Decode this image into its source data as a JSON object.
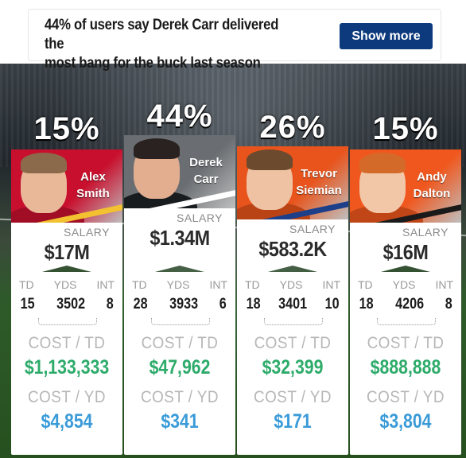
{
  "header": {
    "headline_line1": "44% of users say Derek Carr delivered the",
    "headline_line2": "most bang for the buck last season",
    "show_more_label": "Show more"
  },
  "labels": {
    "salary": "SALARY",
    "td": "TD",
    "yds": "YDS",
    "int": "INT",
    "cost_td": "COST / TD",
    "cost_yd": "COST / YD"
  },
  "colors": {
    "button": "#0d3a7d",
    "cost_td": "#2dab6a",
    "cost_yd": "#3a9bd8"
  },
  "players": [
    {
      "pct": "15%",
      "first": "Alex",
      "last": "Smith",
      "team_colors": [
        "#c8102e",
        "#f2c230"
      ],
      "salary": "$17M",
      "td": "15",
      "yds": "3502",
      "int": "8",
      "cost_td": "$1,133,333",
      "cost_yd": "$4,854"
    },
    {
      "pct": "44%",
      "first": "Derek",
      "last": "Carr",
      "team_colors": [
        "#6a6e72",
        "#ffffff"
      ],
      "salary": "$1.34M",
      "td": "28",
      "yds": "3933",
      "int": "6",
      "cost_td": "$47,962",
      "cost_yd": "$341"
    },
    {
      "pct": "26%",
      "first": "Trevor",
      "last": "Siemian",
      "team_colors": [
        "#e8541c",
        "#1d3f8a"
      ],
      "salary": "$583.2K",
      "td": "18",
      "yds": "3401",
      "int": "10",
      "cost_td": "$32,399",
      "cost_yd": "$171"
    },
    {
      "pct": "15%",
      "first": "Andy",
      "last": "Dalton",
      "team_colors": [
        "#f0571e",
        "#1a1a1a"
      ],
      "salary": "$16M",
      "td": "18",
      "yds": "4206",
      "int": "8",
      "cost_td": "$888,888",
      "cost_yd": "$3,804"
    }
  ]
}
